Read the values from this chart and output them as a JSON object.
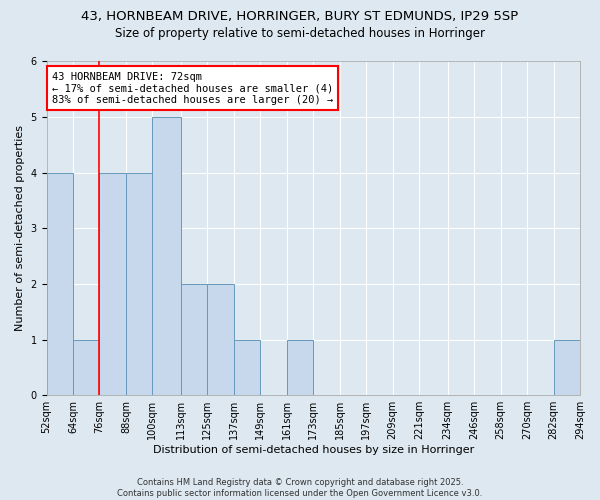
{
  "title": "43, HORNBEAM DRIVE, HORRINGER, BURY ST EDMUNDS, IP29 5SP",
  "subtitle": "Size of property relative to semi-detached houses in Horringer",
  "xlabel": "Distribution of semi-detached houses by size in Horringer",
  "ylabel": "Number of semi-detached properties",
  "bin_edges": [
    52,
    64,
    76,
    88,
    100,
    113,
    125,
    137,
    149,
    161,
    173,
    185,
    197,
    209,
    221,
    234,
    246,
    258,
    270,
    282,
    294
  ],
  "bin_labels": [
    "52sqm",
    "64sqm",
    "76sqm",
    "88sqm",
    "100sqm",
    "113sqm",
    "125sqm",
    "137sqm",
    "149sqm",
    "161sqm",
    "173sqm",
    "185sqm",
    "197sqm",
    "209sqm",
    "221sqm",
    "234sqm",
    "246sqm",
    "258sqm",
    "270sqm",
    "282sqm",
    "294sqm"
  ],
  "counts": [
    4,
    1,
    4,
    4,
    5,
    2,
    2,
    1,
    0,
    1,
    0,
    0,
    0,
    0,
    0,
    0,
    0,
    0,
    0,
    1
  ],
  "bar_color": "#c8d8ec",
  "bar_edge_color": "#6699bb",
  "background_color": "#dde8f0",
  "grid_color": "#ffffff",
  "red_line_x": 76,
  "annotation_title": "43 HORNBEAM DRIVE: 72sqm",
  "annotation_line1": "← 17% of semi-detached houses are smaller (4)",
  "annotation_line2": "83% of semi-detached houses are larger (20) →",
  "ylim": [
    0,
    6
  ],
  "yticks": [
    0,
    1,
    2,
    3,
    4,
    5,
    6
  ],
  "footer1": "Contains HM Land Registry data © Crown copyright and database right 2025.",
  "footer2": "Contains public sector information licensed under the Open Government Licence v3.0.",
  "title_fontsize": 9.5,
  "subtitle_fontsize": 8.5,
  "axis_label_fontsize": 8,
  "tick_fontsize": 7,
  "footer_fontsize": 6,
  "annotation_fontsize": 7.5
}
